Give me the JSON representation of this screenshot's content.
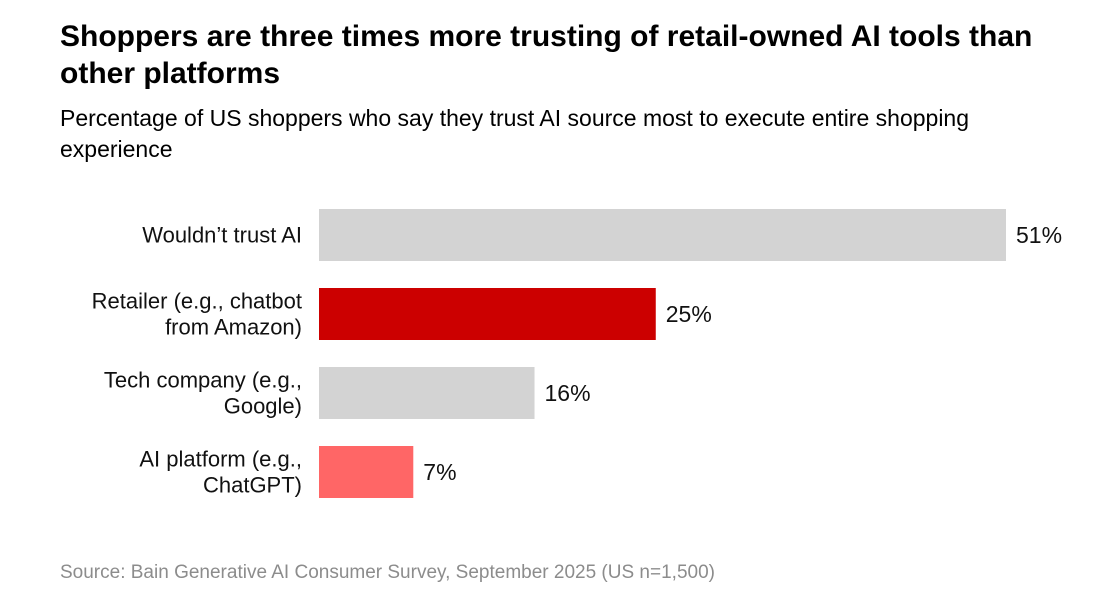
{
  "chart_data": {
    "type": "bar",
    "orientation": "horizontal",
    "title": "Shoppers are three times more trusting of retail-owned AI tools than other platforms",
    "subtitle": "Percentage of US shoppers who say they trust AI source most to execute entire shopping experience",
    "categories": [
      [
        "Wouldn’t trust AI"
      ],
      [
        "Retailer (e.g., chatbot",
        "from Amazon)"
      ],
      [
        "Tech company (e.g.,",
        "Google)"
      ],
      [
        "AI platform (e.g.,",
        "ChatGPT)"
      ]
    ],
    "values": [
      51,
      25,
      16,
      7
    ],
    "value_labels": [
      "51%",
      "25%",
      "16%",
      "7%"
    ],
    "unit": "%",
    "colors": [
      "#d3d3d3",
      "#cc0000",
      "#d3d3d3",
      "#ff6666"
    ],
    "xlim": [
      0,
      51
    ],
    "grid": false,
    "legend": "none",
    "source": "Source: Bain Generative AI Consumer Survey, September 2025 (US n=1,500)"
  }
}
